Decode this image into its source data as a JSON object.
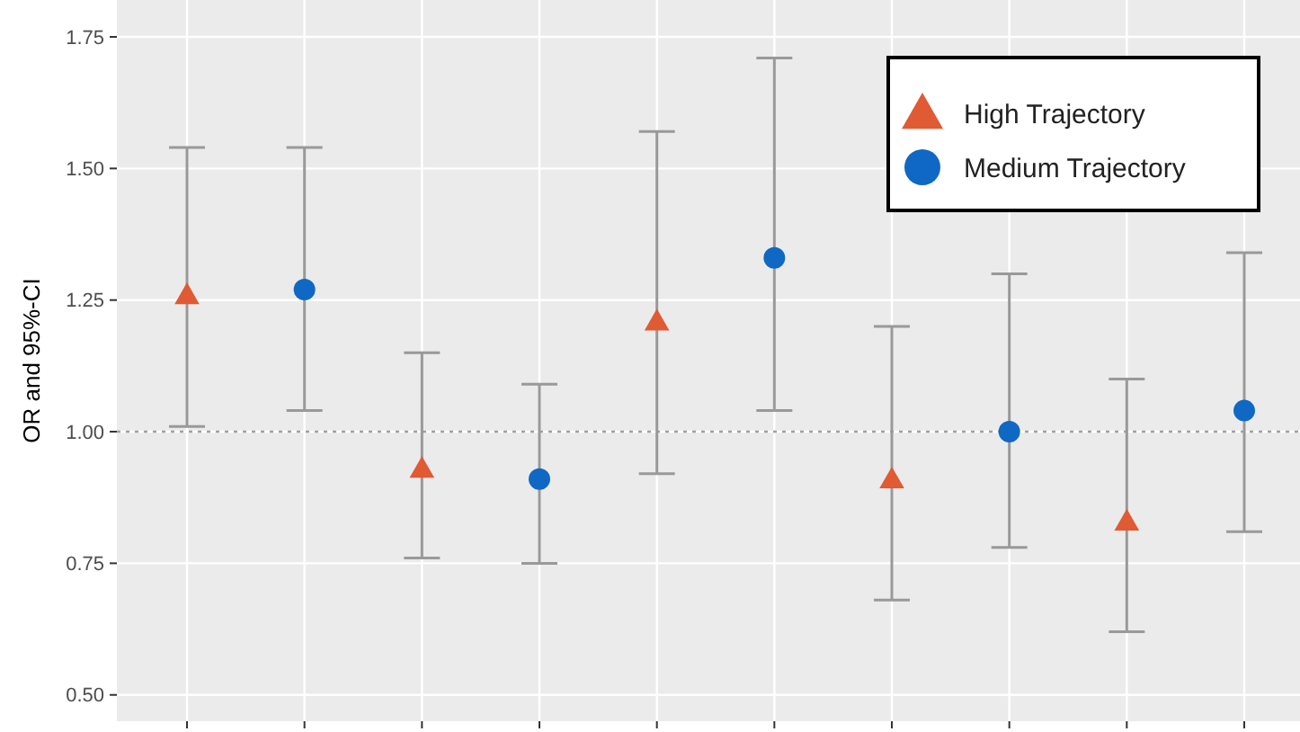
{
  "chart_data": {
    "type": "scatter",
    "ylabel": "OR and 95%-CI",
    "categories": [
      null,
      null,
      null,
      null,
      null,
      null,
      null,
      null,
      null,
      null
    ],
    "series": [
      {
        "name": "High Trajectory",
        "color": "#e05a33",
        "marker": "triangle",
        "values": [
          1.26,
          null,
          0.93,
          null,
          1.21,
          null,
          0.91,
          null,
          0.83,
          null
        ],
        "errors": [
          [
            1.01,
            1.54
          ],
          null,
          [
            0.76,
            1.15
          ],
          null,
          [
            0.92,
            1.57
          ],
          null,
          [
            0.68,
            1.2
          ],
          null,
          [
            0.62,
            1.1
          ],
          null
        ]
      },
      {
        "name": "Medium Trajectory",
        "color": "#0f68c4",
        "marker": "circle",
        "values": [
          null,
          1.27,
          null,
          0.91,
          null,
          1.33,
          null,
          1.0,
          null,
          1.04
        ],
        "errors": [
          null,
          [
            1.04,
            1.54
          ],
          null,
          [
            0.75,
            1.09
          ],
          null,
          [
            1.04,
            1.71
          ],
          null,
          [
            0.78,
            1.3
          ],
          null,
          [
            0.81,
            1.34
          ]
        ]
      }
    ],
    "ylim": [
      0.45,
      1.82
    ],
    "yticks": [
      {
        "value": 0.5,
        "label": "0.50"
      },
      0.75,
      {
        "value": 1,
        "label": "1.00"
      },
      1.25,
      {
        "value": 1.5,
        "label": "1.50"
      },
      1.75
    ],
    "grid": true,
    "legend": "top right",
    "ref_lines": [
      {
        "axis": "y",
        "value": 1,
        "color": "#a0a0a0",
        "line_style": "dotted"
      }
    ]
  }
}
